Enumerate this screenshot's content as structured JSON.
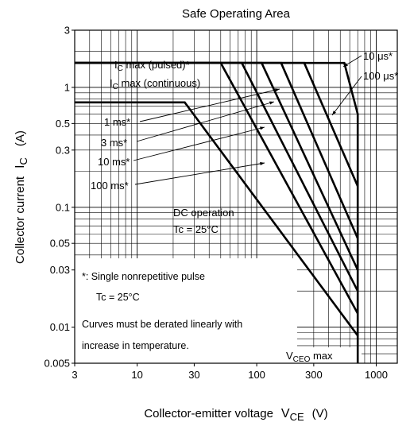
{
  "chart_data": {
    "type": "line",
    "title": "Safe Operating Area",
    "xlabel": "Collector-emitter voltage",
    "xlabel_symbol": "V",
    "xlabel_sub": "CE",
    "xlabel_unit": "(V)",
    "ylabel": "Collector current",
    "ylabel_symbol": "I",
    "ylabel_sub": "C",
    "ylabel_unit": "(A)",
    "xscale": "log",
    "yscale": "log",
    "xlim": [
      3,
      1500
    ],
    "ylim": [
      0.005,
      3
    ],
    "grid": true,
    "xticks": [
      {
        "v": 3,
        "label": "3"
      },
      {
        "v": 10,
        "label": "10"
      },
      {
        "v": 30,
        "label": "30"
      },
      {
        "v": 100,
        "label": "100"
      },
      {
        "v": 300,
        "label": "300"
      },
      {
        "v": 1000,
        "label": "1000"
      }
    ],
    "yticks": [
      {
        "v": 0.005,
        "label": "0.005"
      },
      {
        "v": 0.01,
        "label": "0.01"
      },
      {
        "v": 0.03,
        "label": "0.03"
      },
      {
        "v": 0.05,
        "label": "0.05"
      },
      {
        "v": 0.1,
        "label": "0.1"
      },
      {
        "v": 0.3,
        "label": "0.3"
      },
      {
        "v": 0.5,
        "label": "0.5"
      },
      {
        "v": 1,
        "label": "1"
      },
      {
        "v": 3,
        "label": "3"
      }
    ],
    "series": [
      {
        "name": "10 μs*",
        "x": [
          3,
          540,
          700,
          700
        ],
        "y": [
          1.6,
          1.6,
          0.6,
          0.005
        ]
      },
      {
        "name": "100 μs*",
        "x": [
          3,
          250,
          700
        ],
        "y": [
          1.6,
          1.6,
          0.15
        ]
      },
      {
        "name": "1 ms*",
        "x": [
          3,
          160,
          700
        ],
        "y": [
          1.6,
          1.6,
          0.055
        ]
      },
      {
        "name": "3 ms*",
        "x": [
          3,
          110,
          700
        ],
        "y": [
          1.6,
          1.6,
          0.03
        ]
      },
      {
        "name": "10 ms*",
        "x": [
          3,
          75,
          700
        ],
        "y": [
          1.6,
          1.6,
          0.02
        ]
      },
      {
        "name": "100 ms*",
        "x": [
          3,
          50,
          700
        ],
        "y": [
          1.6,
          1.6,
          0.013
        ]
      },
      {
        "name": "DC operation",
        "x": [
          3,
          25,
          700
        ],
        "y": [
          0.75,
          0.75,
          0.0085
        ]
      }
    ],
    "annotations": {
      "ic_max_pulsed": {
        "main": "I",
        "sub": "C",
        "rest": " max (pulsed)*"
      },
      "ic_max_continuous": {
        "main": "I",
        "sub": "C",
        "rest": " max (continuous)"
      },
      "curve_labels": [
        "10 μs*",
        "100 μs*",
        "1 ms*",
        "3 ms*",
        "10 ms*",
        "100 ms*"
      ],
      "dc_operation": "DC operation",
      "dc_tc": "Tc = 25°C",
      "note_pulse": "*: Single nonrepetitive pulse",
      "note_tc": "Tc = 25°C",
      "note_derate_1": "Curves must be derated linearly with",
      "note_derate_2": "increase in temperature.",
      "vceo_max": {
        "main": "V",
        "sub": "CEO",
        "rest": " max"
      }
    }
  }
}
